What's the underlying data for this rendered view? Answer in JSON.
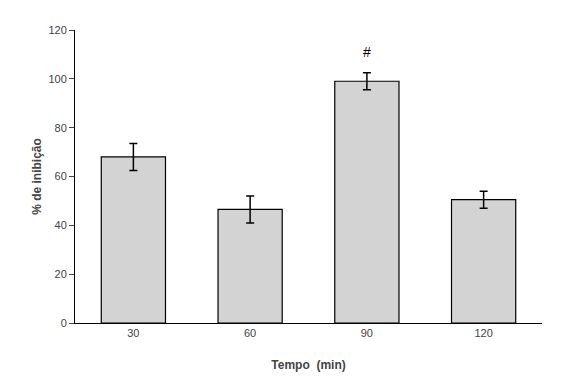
{
  "chart_data": {
    "type": "bar",
    "categories": [
      "30",
      "60",
      "90",
      "120"
    ],
    "values": [
      68,
      46.5,
      99,
      50.5
    ],
    "errors": [
      5.5,
      5.5,
      3.5,
      3.5
    ],
    "color": "#d3d3d3",
    "xlabel": "Tempo  (min)",
    "ylabel": "% de inibição",
    "ylim": [
      0,
      120
    ],
    "yticks": [
      0,
      20,
      40,
      60,
      80,
      100,
      120
    ],
    "annotations": [
      {
        "text": "#",
        "x": "90",
        "y": 107
      }
    ],
    "grid": false
  }
}
